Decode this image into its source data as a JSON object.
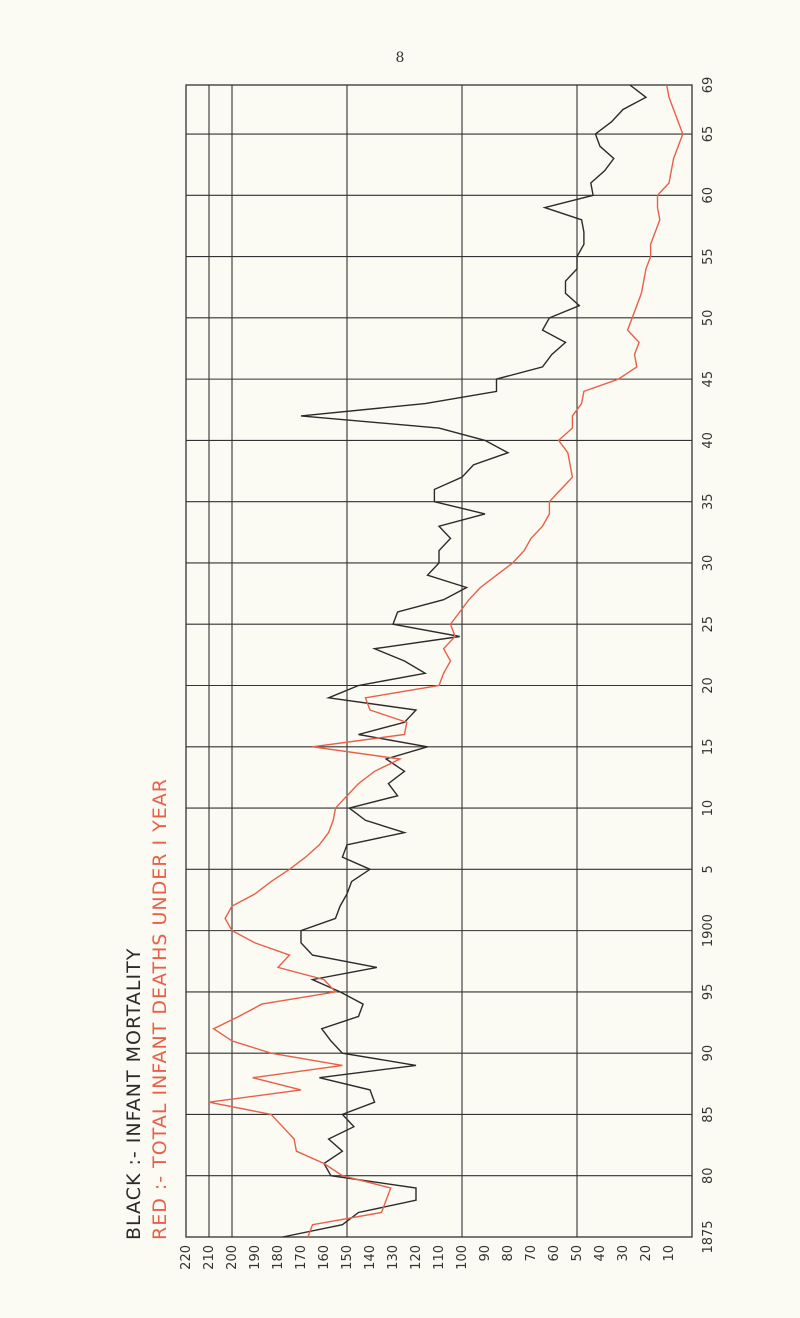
{
  "page_number": "8",
  "colors": {
    "black": "#2b2b2b",
    "red": "#e8604a",
    "background": "#fbfaf3"
  },
  "chart_data": {
    "type": "line",
    "orientation": "rotated-90-ccw",
    "legend": [
      {
        "text": "BLACK :- INFANT MORTALITY",
        "color": "#2b2b2b"
      },
      {
        "text": "RED :- TOTAL INFANT DEATHS UNDER I YEAR",
        "color": "#e8604a"
      }
    ],
    "legend_placement": "top-left (rotated)",
    "grid": true,
    "xlim": [
      1875,
      1969
    ],
    "ylim": [
      0,
      220
    ],
    "x_tick_labels": [
      "1875",
      "80",
      "85",
      "90",
      "95",
      "1900",
      "5",
      "10",
      "15",
      "20",
      "25",
      "30",
      "35",
      "40",
      "45",
      "50",
      "55",
      "60",
      "65",
      "69"
    ],
    "y_tick_labels": [
      "220",
      "210",
      "200",
      "190",
      "180",
      "170",
      "160",
      "150",
      "140",
      "130",
      "120",
      "110",
      "100",
      "90",
      "80",
      "70",
      "60",
      "50",
      "40",
      "30",
      "20",
      "10"
    ],
    "x": [
      1875,
      1876,
      1877,
      1878,
      1879,
      1880,
      1881,
      1882,
      1883,
      1884,
      1885,
      1886,
      1887,
      1888,
      1889,
      1890,
      1891,
      1892,
      1893,
      1894,
      1895,
      1896,
      1897,
      1898,
      1899,
      1900,
      1901,
      1902,
      1903,
      1904,
      1905,
      1906,
      1907,
      1908,
      1909,
      1910,
      1911,
      1912,
      1913,
      1914,
      1915,
      1916,
      1917,
      1918,
      1919,
      1920,
      1921,
      1922,
      1923,
      1924,
      1925,
      1926,
      1927,
      1928,
      1929,
      1930,
      1931,
      1932,
      1933,
      1934,
      1935,
      1936,
      1937,
      1938,
      1939,
      1940,
      1941,
      1942,
      1943,
      1944,
      1945,
      1946,
      1947,
      1948,
      1949,
      1950,
      1951,
      1952,
      1953,
      1954,
      1955,
      1956,
      1957,
      1958,
      1959,
      1960,
      1961,
      1962,
      1963,
      1964,
      1965,
      1966,
      1967,
      1968,
      1969
    ],
    "series": [
      {
        "name": "INFANT MORTALITY",
        "color": "#2b2b2b",
        "values": [
          178,
          152,
          145,
          120,
          120,
          157,
          160,
          152,
          158,
          147,
          152,
          138,
          140,
          162,
          120,
          152,
          157,
          161,
          145,
          143,
          153,
          165,
          137,
          165,
          170,
          170,
          155,
          153,
          150,
          148,
          140,
          152,
          150,
          125,
          142,
          149,
          128,
          132,
          125,
          133,
          115,
          145,
          125,
          120,
          158,
          145,
          116,
          125,
          138,
          101,
          130,
          128,
          108,
          98,
          115,
          110,
          110,
          105,
          110,
          90,
          112,
          112,
          100,
          95,
          80,
          90,
          110,
          170,
          116,
          85,
          85,
          65,
          61,
          55,
          65,
          62,
          49,
          55,
          55,
          50,
          50,
          47,
          47,
          48,
          64,
          43,
          44,
          38,
          34,
          40,
          42,
          35,
          30,
          20,
          27
        ],
        "note": "values approximate, read from grid (1 unit per 10 per 1000 scale as labeled)"
      },
      {
        "name": "TOTAL INFANT DEATHS UNDER I YEAR",
        "color": "#e8604a",
        "values": [
          167,
          165,
          135,
          133,
          131,
          152,
          160,
          172,
          173,
          178,
          183,
          210,
          170,
          191,
          152,
          183,
          200,
          208,
          197,
          187,
          155,
          160,
          180,
          175,
          190,
          200,
          203,
          200,
          190,
          183,
          175,
          168,
          162,
          158,
          156,
          155,
          150,
          145,
          138,
          127,
          165,
          125,
          124,
          140,
          142,
          110,
          108,
          105,
          108,
          103,
          105,
          101,
          97,
          92,
          85,
          78,
          73,
          70,
          65,
          62,
          62,
          57,
          52,
          53,
          54,
          58,
          52,
          52,
          48,
          47,
          32,
          24,
          25,
          23,
          28,
          26,
          24,
          22,
          21,
          20,
          18,
          18,
          16,
          14,
          15,
          15,
          10,
          9,
          8,
          6,
          4,
          6,
          8,
          10,
          11
        ]
      }
    ]
  }
}
